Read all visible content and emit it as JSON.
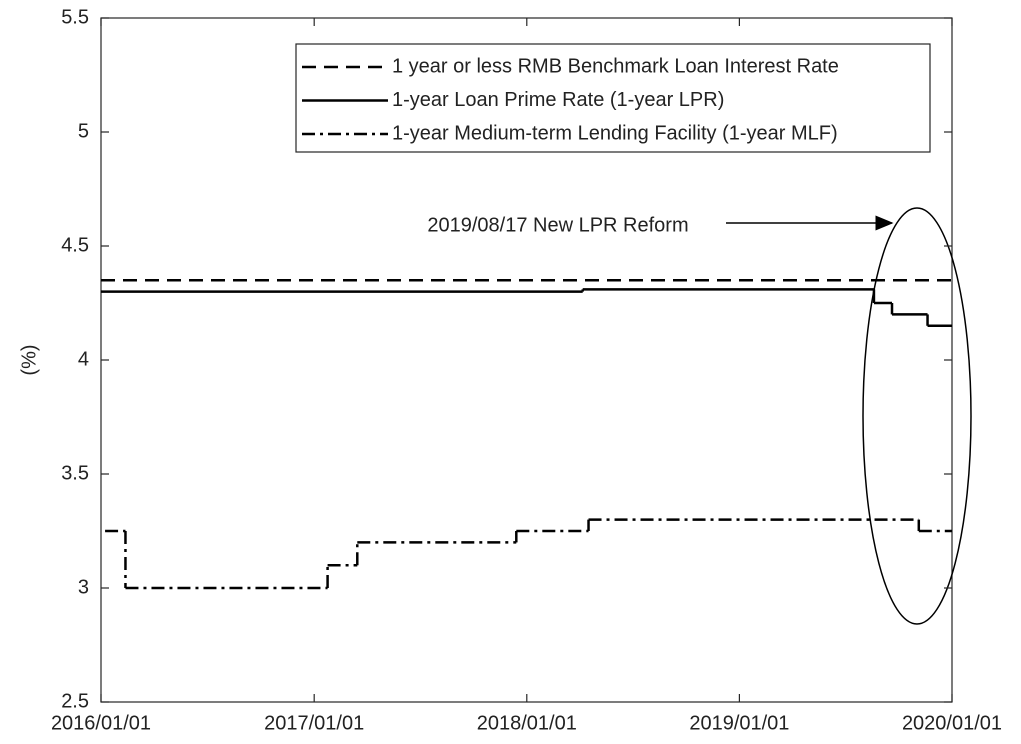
{
  "chart_data": {
    "type": "line",
    "ylabel": "(%)",
    "xlim": [
      "2016/01/01",
      "2020/01/01"
    ],
    "xticks": [
      "2016/01/01",
      "2017/01/01",
      "2018/01/01",
      "2019/01/01",
      "2020/01/01"
    ],
    "ylim": [
      2.5,
      5.5
    ],
    "yticks": [
      2.5,
      3,
      3.5,
      4,
      4.5,
      5,
      5.5
    ],
    "grid": false,
    "legend": "upper right",
    "drawstyle": "steps-post",
    "series": [
      {
        "name": "1 year or less RMB Benchmark Loan Interest Rate",
        "color": "#000000",
        "linestyle": "dashed",
        "x": [
          "2016/01/01"
        ],
        "values": [
          4.35
        ]
      },
      {
        "name": "1-year Loan Prime Rate (1-year LPR)",
        "color": "#000000",
        "linestyle": "solid",
        "x": [
          "2016/01/01",
          "2018/04/07",
          "2019/08/20",
          "2019/09/20",
          "2019/11/20"
        ],
        "values": [
          4.3,
          4.31,
          4.25,
          4.2,
          4.15
        ]
      },
      {
        "name": "1-year Medium-term Lending Facility (1-year MLF)",
        "color": "#000000",
        "linestyle": "dashdot",
        "x": [
          "2016/01/08",
          "2016/02/12",
          "2017/01/24",
          "2017/03/16",
          "2017/12/14",
          "2018/04/17",
          "2019/11/05"
        ],
        "values": [
          3.25,
          3.0,
          3.1,
          3.2,
          3.25,
          3.3,
          3.25
        ]
      }
    ],
    "annotation": "2019/08/17 New LPR Reform"
  }
}
